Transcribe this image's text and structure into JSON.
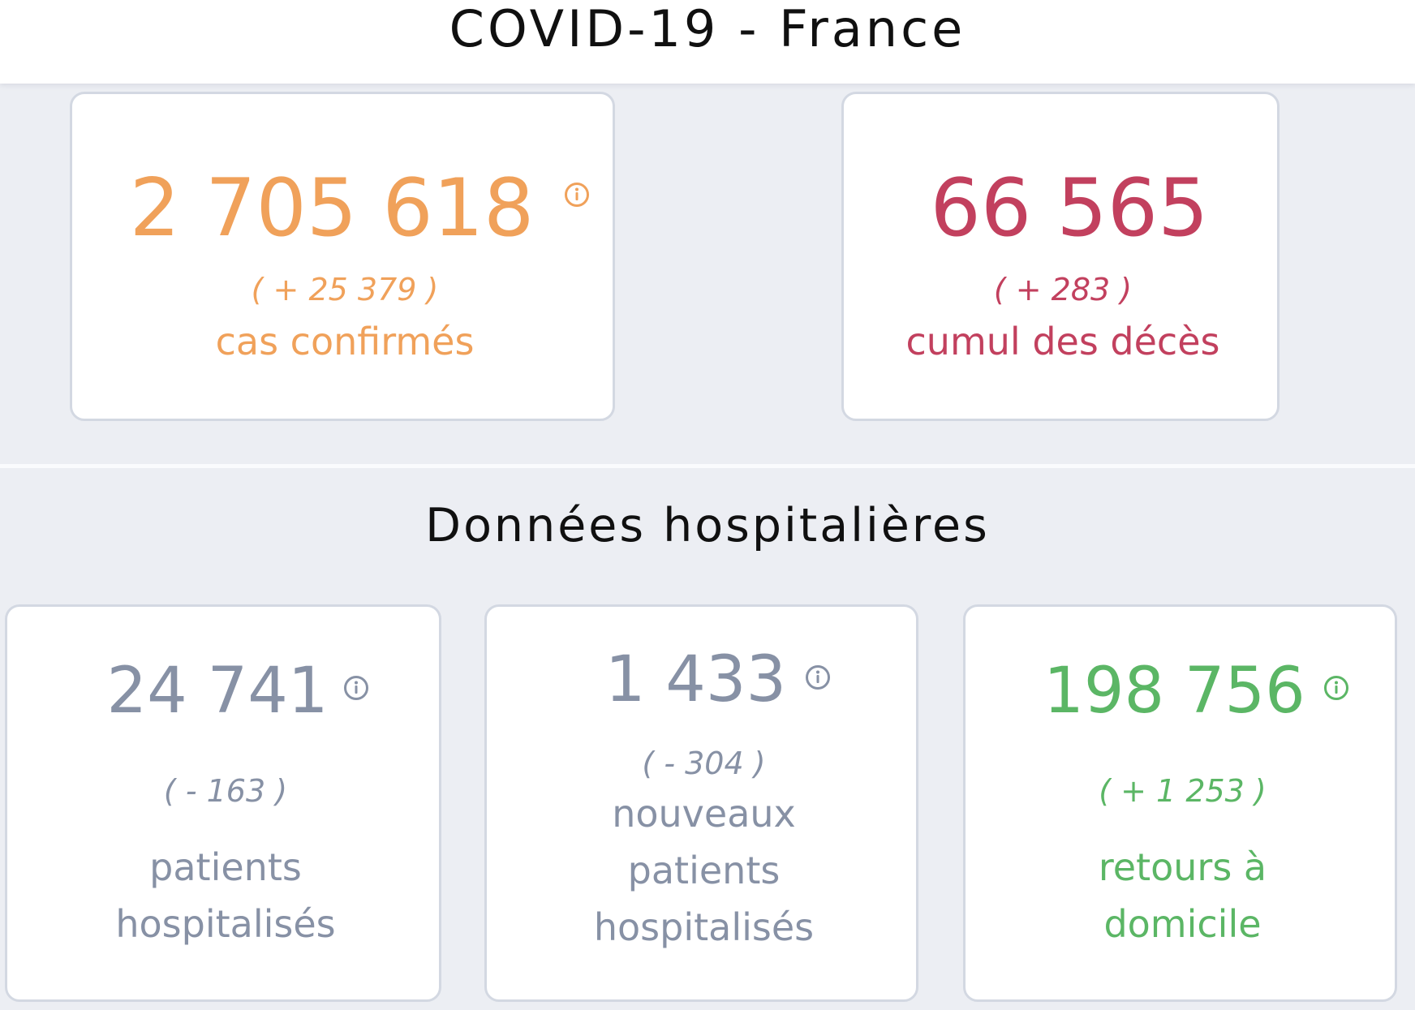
{
  "header": {
    "title": "COVID-19 - France"
  },
  "summary": {
    "cases": {
      "value": "2 705 618",
      "delta": "( + 25 379 )",
      "label": "cas confirmés",
      "color": "#f0a15a",
      "icon": "info-icon"
    },
    "deaths": {
      "value": "66 565",
      "delta": "( + 283 )",
      "label": "cumul des décès",
      "color": "#c2405e"
    }
  },
  "hospital": {
    "title": "Données hospitalières",
    "hospitalized": {
      "value": "24 741",
      "delta": "( - 163 )",
      "label": "patients\nhospitalisés",
      "color": "#8791a5",
      "icon": "info-icon"
    },
    "new_hospitalized": {
      "value": "1 433",
      "delta": "( - 304 )",
      "label": "nouveaux\npatients\nhospitalisés",
      "color": "#8791a5",
      "icon": "info-icon"
    },
    "returned_home": {
      "value": "198 756",
      "delta": "( + 1 253 )",
      "label": "retours à\ndomicile",
      "color": "#5bb665",
      "icon": "info-icon"
    }
  }
}
